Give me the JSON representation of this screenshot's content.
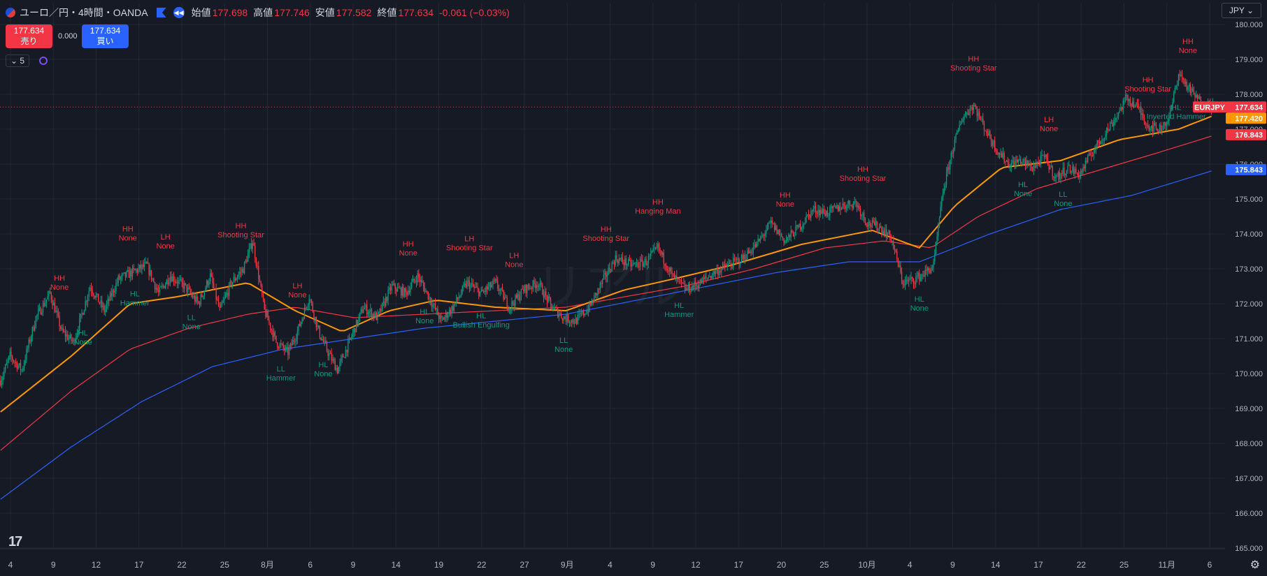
{
  "header": {
    "title": "ユーロ／円・4時間・OANDA",
    "open_label": "始値",
    "open": "177.698",
    "high_label": "高値",
    "high": "177.746",
    "low_label": "安値",
    "low": "177.582",
    "close_label": "終値",
    "close": "177.634",
    "change": "-0.061 (−0.03%)"
  },
  "trade": {
    "sell_price": "177.634",
    "sell_label": "売り",
    "spread": "0.000",
    "buy_price": "177.634",
    "buy_label": "買い"
  },
  "indicator": {
    "count": "5"
  },
  "currency": "JPY",
  "colors": {
    "bg": "#161a25",
    "grid": "#232734",
    "up": "#089981",
    "down": "#f23645",
    "ma_fast": "#ff9800",
    "ma_mid": "#f23645",
    "ma_slow": "#2962ff",
    "label_high": "#f23645",
    "label_low": "#089981"
  },
  "chart_data": {
    "type": "candlestick",
    "symbol": "EURJPY",
    "ylim": [
      165.0,
      180.0
    ],
    "y_ticks": [
      "165.000",
      "166.000",
      "167.000",
      "168.000",
      "169.000",
      "170.000",
      "171.000",
      "172.000",
      "173.000",
      "174.000",
      "175.000",
      "176.000",
      "177.000",
      "178.000",
      "179.000",
      "180.000"
    ],
    "x_ticks": [
      "4",
      "9",
      "12",
      "17",
      "22",
      "25",
      "8月",
      "6",
      "9",
      "14",
      "19",
      "22",
      "27",
      "9月",
      "4",
      "9",
      "12",
      "17",
      "20",
      "25",
      "10月",
      "4",
      "9",
      "14",
      "17",
      "22",
      "25",
      "11月",
      "6"
    ],
    "price_path": [
      [
        0,
        169.8
      ],
      [
        8,
        170.5
      ],
      [
        18,
        170.1
      ],
      [
        30,
        171.6
      ],
      [
        42,
        172.3
      ],
      [
        52,
        171.2
      ],
      [
        62,
        170.9
      ],
      [
        76,
        172.5
      ],
      [
        88,
        171.8
      ],
      [
        100,
        172.7
      ],
      [
        112,
        172.9
      ],
      [
        124,
        173.1
      ],
      [
        134,
        172.3
      ],
      [
        144,
        172.8
      ],
      [
        156,
        172.5
      ],
      [
        168,
        172.0
      ],
      [
        178,
        172.8
      ],
      [
        186,
        171.8
      ],
      [
        196,
        172.6
      ],
      [
        206,
        173.0
      ],
      [
        214,
        173.8
      ],
      [
        224,
        171.8
      ],
      [
        234,
        170.9
      ],
      [
        244,
        170.6
      ],
      [
        252,
        171.2
      ],
      [
        262,
        172.2
      ],
      [
        270,
        171.2
      ],
      [
        278,
        170.6
      ],
      [
        286,
        170.1
      ],
      [
        296,
        170.9
      ],
      [
        308,
        171.9
      ],
      [
        320,
        171.6
      ],
      [
        332,
        172.5
      ],
      [
        344,
        172.3
      ],
      [
        354,
        172.8
      ],
      [
        362,
        172.3
      ],
      [
        374,
        171.5
      ],
      [
        384,
        171.9
      ],
      [
        396,
        172.6
      ],
      [
        408,
        172.3
      ],
      [
        420,
        172.6
      ],
      [
        432,
        171.9
      ],
      [
        444,
        172.4
      ],
      [
        456,
        172.6
      ],
      [
        468,
        171.9
      ],
      [
        478,
        171.6
      ],
      [
        488,
        171.5
      ],
      [
        500,
        171.9
      ],
      [
        512,
        172.7
      ],
      [
        522,
        173.3
      ],
      [
        536,
        173.1
      ],
      [
        548,
        173.2
      ],
      [
        558,
        173.6
      ],
      [
        570,
        172.8
      ],
      [
        582,
        172.4
      ],
      [
        594,
        172.6
      ],
      [
        606,
        172.9
      ],
      [
        618,
        173.1
      ],
      [
        630,
        173.3
      ],
      [
        642,
        173.7
      ],
      [
        654,
        174.3
      ],
      [
        666,
        173.8
      ],
      [
        678,
        174.2
      ],
      [
        690,
        174.7
      ],
      [
        702,
        174.6
      ],
      [
        714,
        174.8
      ],
      [
        726,
        174.9
      ],
      [
        736,
        174.3
      ],
      [
        746,
        174.2
      ],
      [
        756,
        173.9
      ],
      [
        766,
        172.6
      ],
      [
        776,
        172.7
      ],
      [
        786,
        172.9
      ],
      [
        792,
        173.1
      ],
      [
        800,
        175.2
      ],
      [
        808,
        176.4
      ],
      [
        816,
        177.3
      ],
      [
        826,
        177.7
      ],
      [
        836,
        177.0
      ],
      [
        846,
        176.4
      ],
      [
        856,
        176.0
      ],
      [
        866,
        176.1
      ],
      [
        876,
        175.9
      ],
      [
        886,
        176.2
      ],
      [
        896,
        175.6
      ],
      [
        906,
        175.9
      ],
      [
        916,
        175.7
      ],
      [
        926,
        176.3
      ],
      [
        936,
        176.8
      ],
      [
        946,
        177.3
      ],
      [
        956,
        177.9
      ],
      [
        966,
        177.6
      ],
      [
        974,
        177.1
      ],
      [
        984,
        177.0
      ],
      [
        992,
        177.3
      ],
      [
        1000,
        178.6
      ],
      [
        1010,
        178.1
      ],
      [
        1018,
        177.8
      ],
      [
        1026,
        177.7
      ],
      [
        1032,
        177.634
      ]
    ],
    "ma_fast": [
      [
        0,
        168.9
      ],
      [
        60,
        170.5
      ],
      [
        110,
        172.0
      ],
      [
        150,
        172.2
      ],
      [
        180,
        172.4
      ],
      [
        210,
        172.6
      ],
      [
        250,
        171.8
      ],
      [
        290,
        171.2
      ],
      [
        330,
        171.8
      ],
      [
        370,
        172.1
      ],
      [
        420,
        171.9
      ],
      [
        480,
        171.8
      ],
      [
        530,
        172.4
      ],
      [
        570,
        172.7
      ],
      [
        620,
        173.1
      ],
      [
        680,
        173.7
      ],
      [
        740,
        174.1
      ],
      [
        780,
        173.6
      ],
      [
        810,
        174.8
      ],
      [
        850,
        175.9
      ],
      [
        900,
        176.1
      ],
      [
        950,
        176.7
      ],
      [
        1000,
        177.0
      ],
      [
        1032,
        177.42
      ]
    ],
    "ma_mid": [
      [
        0,
        167.8
      ],
      [
        60,
        169.5
      ],
      [
        110,
        170.7
      ],
      [
        160,
        171.3
      ],
      [
        210,
        171.7
      ],
      [
        250,
        171.9
      ],
      [
        300,
        171.6
      ],
      [
        360,
        171.7
      ],
      [
        420,
        171.8
      ],
      [
        480,
        171.9
      ],
      [
        530,
        172.2
      ],
      [
        580,
        172.5
      ],
      [
        640,
        173.0
      ],
      [
        700,
        173.6
      ],
      [
        750,
        173.8
      ],
      [
        790,
        173.6
      ],
      [
        830,
        174.5
      ],
      [
        880,
        175.3
      ],
      [
        930,
        175.8
      ],
      [
        980,
        176.3
      ],
      [
        1032,
        176.843
      ]
    ],
    "ma_slow": [
      [
        0,
        166.4
      ],
      [
        60,
        167.9
      ],
      [
        120,
        169.2
      ],
      [
        180,
        170.2
      ],
      [
        240,
        170.7
      ],
      [
        300,
        171.0
      ],
      [
        360,
        171.3
      ],
      [
        420,
        171.5
      ],
      [
        480,
        171.7
      ],
      [
        540,
        172.1
      ],
      [
        600,
        172.5
      ],
      [
        660,
        172.9
      ],
      [
        720,
        173.2
      ],
      [
        780,
        173.2
      ],
      [
        840,
        174.0
      ],
      [
        900,
        174.7
      ],
      [
        960,
        175.1
      ],
      [
        1032,
        175.843
      ]
    ],
    "labels": [
      {
        "i": 50,
        "kind": "high",
        "lines": [
          "HH",
          "None"
        ]
      },
      {
        "i": 108,
        "kind": "high",
        "lines": [
          "HH",
          "None"
        ]
      },
      {
        "i": 140,
        "kind": "high",
        "lines": [
          "LH",
          "None"
        ]
      },
      {
        "i": 204,
        "kind": "high",
        "lines": [
          "HH",
          "Shooting Star"
        ]
      },
      {
        "i": 252,
        "kind": "high",
        "lines": [
          "LH",
          "None"
        ]
      },
      {
        "i": 346,
        "kind": "high",
        "lines": [
          "HH",
          "None"
        ]
      },
      {
        "i": 398,
        "kind": "high",
        "lines": [
          "LH",
          "Shooting Star"
        ]
      },
      {
        "i": 436,
        "kind": "high",
        "lines": [
          "LH",
          "None"
        ]
      },
      {
        "i": 514,
        "kind": "high",
        "lines": [
          "HH",
          "Shooting Star"
        ]
      },
      {
        "i": 558,
        "kind": "high",
        "lines": [
          "HH",
          "Hanging Man"
        ]
      },
      {
        "i": 666,
        "kind": "high",
        "lines": [
          "HH",
          "None"
        ]
      },
      {
        "i": 732,
        "kind": "high",
        "lines": [
          "HH",
          "Shooting Star"
        ]
      },
      {
        "i": 826,
        "kind": "high",
        "lines": [
          "HH",
          "Shooting Star"
        ]
      },
      {
        "i": 890,
        "kind": "high",
        "lines": [
          "LH",
          "None"
        ]
      },
      {
        "i": 974,
        "kind": "high",
        "lines": [
          "HH",
          "Shooting Star"
        ]
      },
      {
        "i": 1008,
        "kind": "high",
        "lines": [
          "HH",
          "None"
        ]
      },
      {
        "i": 70,
        "kind": "low",
        "lines": [
          "HL",
          "None"
        ]
      },
      {
        "i": 114,
        "kind": "low",
        "lines": [
          "HL",
          "Hammer"
        ]
      },
      {
        "i": 162,
        "kind": "low",
        "lines": [
          "LL",
          "None"
        ]
      },
      {
        "i": 238,
        "kind": "low",
        "lines": [
          "LL",
          "Hammer"
        ]
      },
      {
        "i": 274,
        "kind": "low",
        "lines": [
          "HL",
          "None"
        ]
      },
      {
        "i": 360,
        "kind": "low",
        "lines": [
          "HL",
          "None"
        ]
      },
      {
        "i": 408,
        "kind": "low",
        "lines": [
          "HL",
          "Bullish Engulfing"
        ]
      },
      {
        "i": 478,
        "kind": "low",
        "lines": [
          "LL",
          "None"
        ]
      },
      {
        "i": 576,
        "kind": "low",
        "lines": [
          "HL",
          "Hammer"
        ]
      },
      {
        "i": 780,
        "kind": "low",
        "lines": [
          "HL",
          "None"
        ]
      },
      {
        "i": 868,
        "kind": "low",
        "lines": [
          "HL",
          "None"
        ]
      },
      {
        "i": 902,
        "kind": "low",
        "lines": [
          "LL",
          "None"
        ]
      },
      {
        "i": 998,
        "kind": "low",
        "lines": [
          "HL",
          "Inverted Hammer"
        ]
      }
    ],
    "price_tags": [
      {
        "text": "EURJPY",
        "value": 177.634,
        "color": "#f23645"
      },
      {
        "text": "177.634",
        "value": 177.634,
        "color": "#f23645"
      },
      {
        "text": "177.420",
        "value": 177.42,
        "color": "#ff9800"
      },
      {
        "text": "176.843",
        "value": 176.843,
        "color": "#f23645"
      },
      {
        "text": "175.843",
        "value": 175.843,
        "color": "#2962ff"
      }
    ],
    "watermark": "リアル"
  }
}
